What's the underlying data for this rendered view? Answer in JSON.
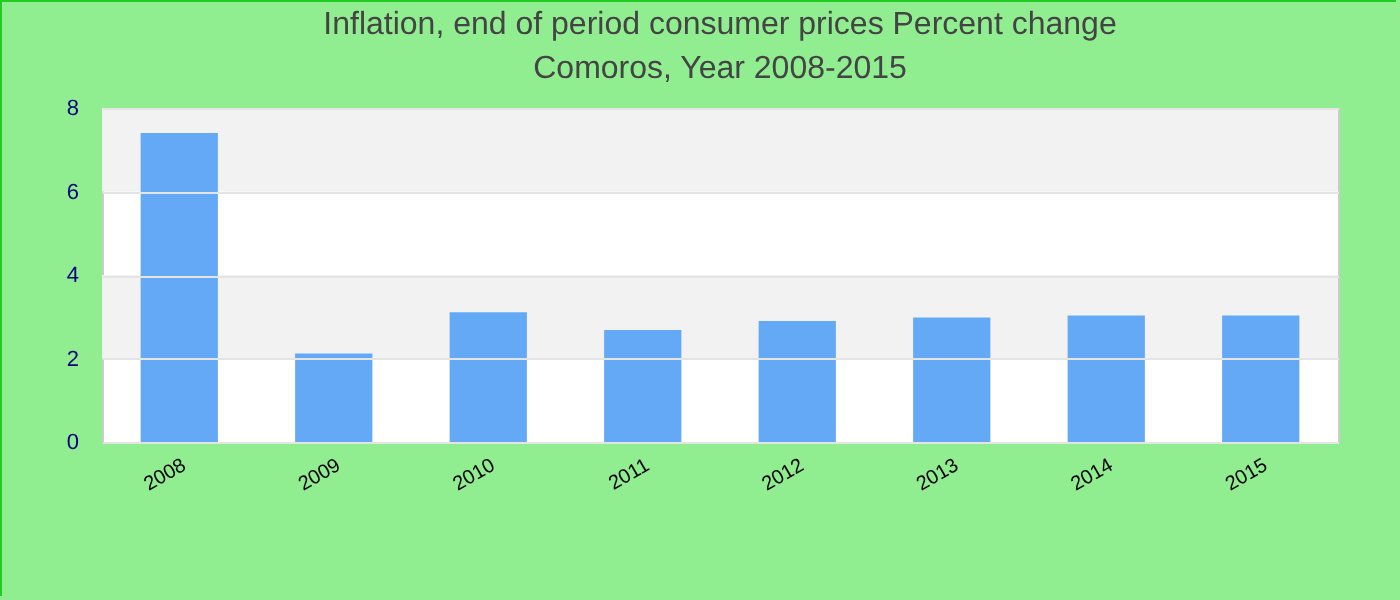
{
  "chart_data": {
    "type": "bar",
    "title": "Inflation, end of period consumer prices  Percent change",
    "subtitle": "Comoros, Year 2008-2015",
    "categories": [
      "2008",
      "2009",
      "2010",
      "2011",
      "2012",
      "2013",
      "2014",
      "2015"
    ],
    "values": [
      7.4,
      2.12,
      3.11,
      2.68,
      2.9,
      2.98,
      3.03,
      3.03
    ],
    "color": "#63a9f5",
    "ylim": [
      0,
      8
    ],
    "yticks": [
      0,
      2,
      4,
      6,
      8
    ],
    "grid": "y"
  }
}
